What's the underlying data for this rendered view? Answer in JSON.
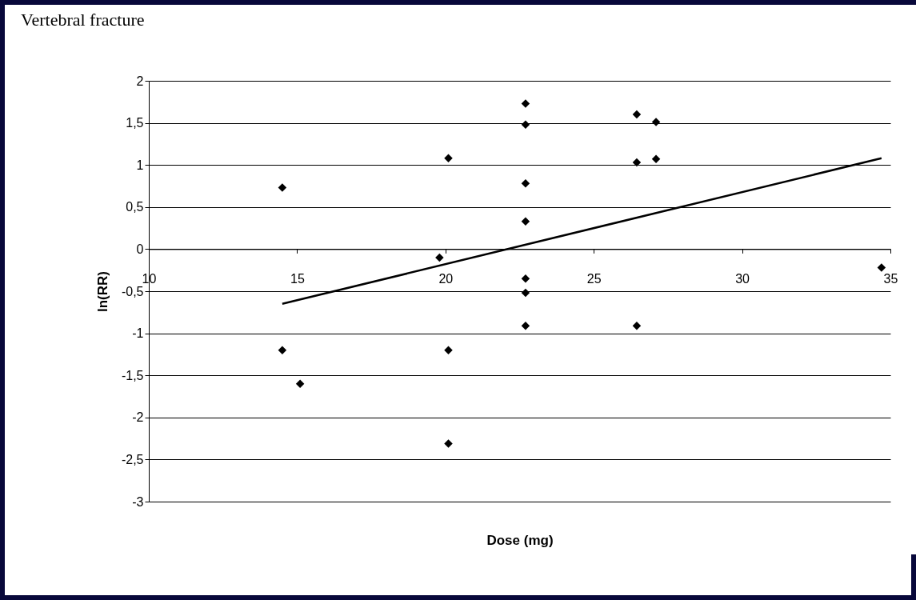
{
  "chart_data": {
    "type": "scatter",
    "title": "Vertebral fracture",
    "xlabel": "Dose (mg)",
    "ylabel": "ln(RR)",
    "xlim": [
      10,
      35
    ],
    "xticks": [
      10,
      15,
      20,
      25,
      30,
      35
    ],
    "ylim": [
      -3,
      2
    ],
    "yticks": [
      {
        "value": -3,
        "label": "-3"
      },
      {
        "value": -2.5,
        "label": "-2,5"
      },
      {
        "value": -2,
        "label": "-2"
      },
      {
        "value": -1.5,
        "label": "-1,5"
      },
      {
        "value": -1,
        "label": "-1"
      },
      {
        "value": -0.5,
        "label": "-0,5"
      },
      {
        "value": 0,
        "label": "0"
      },
      {
        "value": 0.5,
        "label": "0,5"
      },
      {
        "value": 1,
        "label": "1"
      },
      {
        "value": 1.5,
        "label": "1,5"
      },
      {
        "value": 2,
        "label": "2"
      }
    ],
    "grid": "y",
    "legend": false,
    "marker": "diamond",
    "series": [
      {
        "type": "scatter",
        "color": "#000000",
        "x": [
          14.5,
          14.5,
          15.1,
          19.8,
          20.1,
          20.1,
          20.1,
          22.7,
          22.7,
          22.7,
          22.7,
          22.7,
          22.7,
          22.7,
          26.45,
          26.45,
          26.45,
          27.1,
          27.1,
          34.7
        ],
        "values": [
          0.73,
          -1.2,
          -1.6,
          -0.1,
          1.08,
          -1.2,
          -2.31,
          1.73,
          1.48,
          0.78,
          0.33,
          -0.35,
          -0.52,
          -0.91,
          1.6,
          1.03,
          -0.91,
          1.51,
          1.07,
          -0.22
        ]
      },
      {
        "type": "line",
        "color": "#000000",
        "marker": "none",
        "x": [
          14.5,
          34.7
        ],
        "values": [
          -0.65,
          1.08
        ]
      }
    ]
  }
}
